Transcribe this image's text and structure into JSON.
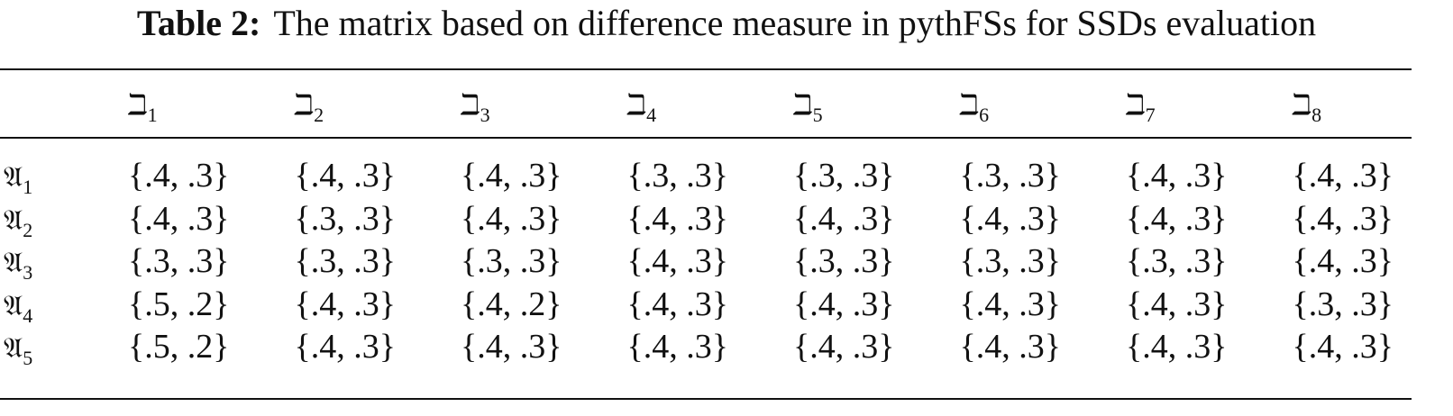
{
  "caption": {
    "label": "Table 2:",
    "text": "The matrix based on difference measure in pythFSs for SSDs evaluation"
  },
  "table": {
    "columns": [
      {
        "symbol": "ℶ",
        "sub": "1"
      },
      {
        "symbol": "ℶ",
        "sub": "2"
      },
      {
        "symbol": "ℶ",
        "sub": "3"
      },
      {
        "symbol": "ℶ",
        "sub": "4"
      },
      {
        "symbol": "ℶ",
        "sub": "5"
      },
      {
        "symbol": "ℶ",
        "sub": "6"
      },
      {
        "symbol": "ℶ",
        "sub": "7"
      },
      {
        "symbol": "ℶ",
        "sub": "8"
      }
    ],
    "rows": [
      {
        "symbol": "𝔄",
        "sub": "1",
        "cells": [
          "{.4, .3}",
          "{.4, .3}",
          "{.4, .3}",
          "{.3, .3}",
          "{.3, .3}",
          "{.3, .3}",
          "{.4, .3}",
          "{.4, .3}"
        ]
      },
      {
        "symbol": "𝔄",
        "sub": "2",
        "cells": [
          "{.4, .3}",
          "{.3, .3}",
          "{.4, .3}",
          "{.4, .3}",
          "{.4, .3}",
          "{.4, .3}",
          "{.4, .3}",
          "{.4, .3}"
        ]
      },
      {
        "symbol": "𝔄",
        "sub": "3",
        "cells": [
          "{.3, .3}",
          "{.3, .3}",
          "{.3, .3}",
          "{.4, .3}",
          "{.3, .3}",
          "{.3, .3}",
          "{.3, .3}",
          "{.4, .3}"
        ]
      },
      {
        "symbol": "𝔄",
        "sub": "4",
        "cells": [
          "{.5, .2}",
          "{.4, .3}",
          "{.4, .2}",
          "{.4, .3}",
          "{.4, .3}",
          "{.4, .3}",
          "{.4, .3}",
          "{.3, .3}"
        ]
      },
      {
        "symbol": "𝔄",
        "sub": "5",
        "cells": [
          "{.5, .2}",
          "{.4, .3}",
          "{.4, .3}",
          "{.4, .3}",
          "{.4, .3}",
          "{.4, .3}",
          "{.4, .3}",
          "{.4, .3}"
        ]
      }
    ]
  }
}
